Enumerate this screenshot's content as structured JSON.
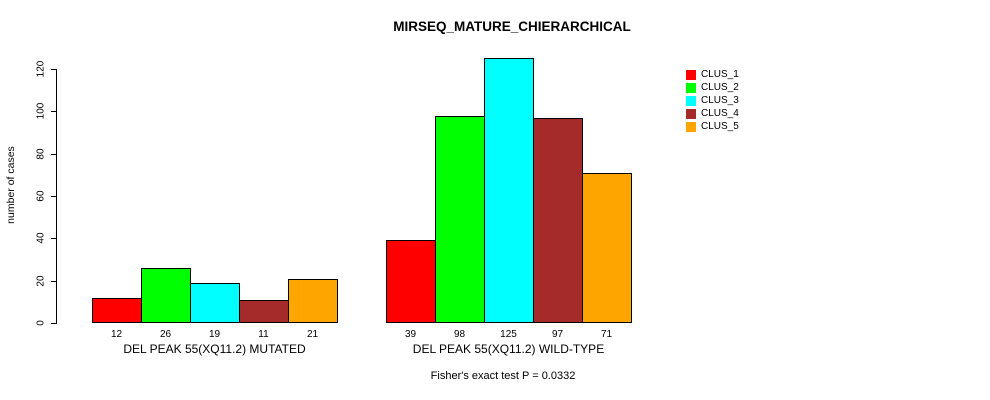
{
  "chart_data": {
    "type": "bar",
    "title": "MIRSEQ_MATURE_CHIERARCHICAL",
    "ylabel": "number of cases",
    "xlabel": "",
    "ylim": [
      0,
      120
    ],
    "yticks": [
      0,
      20,
      40,
      60,
      80,
      100,
      120
    ],
    "grid": false,
    "legend_position": "right-outside",
    "categories": [
      "DEL PEAK 55(XQ11.2) MUTATED",
      "DEL PEAK 55(XQ11.2) WILD-TYPE"
    ],
    "series": [
      {
        "name": "CLUS_1",
        "color": "#FF0000",
        "values": [
          12,
          39
        ]
      },
      {
        "name": "CLUS_2",
        "color": "#00FF00",
        "values": [
          26,
          98
        ]
      },
      {
        "name": "CLUS_3",
        "color": "#00FFFF",
        "values": [
          19,
          125
        ]
      },
      {
        "name": "CLUS_4",
        "color": "#A52A2A",
        "values": [
          11,
          97
        ]
      },
      {
        "name": "CLUS_5",
        "color": "#FFA500",
        "values": [
          21,
          71
        ]
      }
    ],
    "bar_value_labels": [
      [
        12,
        26,
        19,
        11,
        21
      ],
      [
        39,
        98,
        125,
        97,
        71
      ]
    ],
    "annotation": "Fisher's exact test P = 0.0332"
  }
}
